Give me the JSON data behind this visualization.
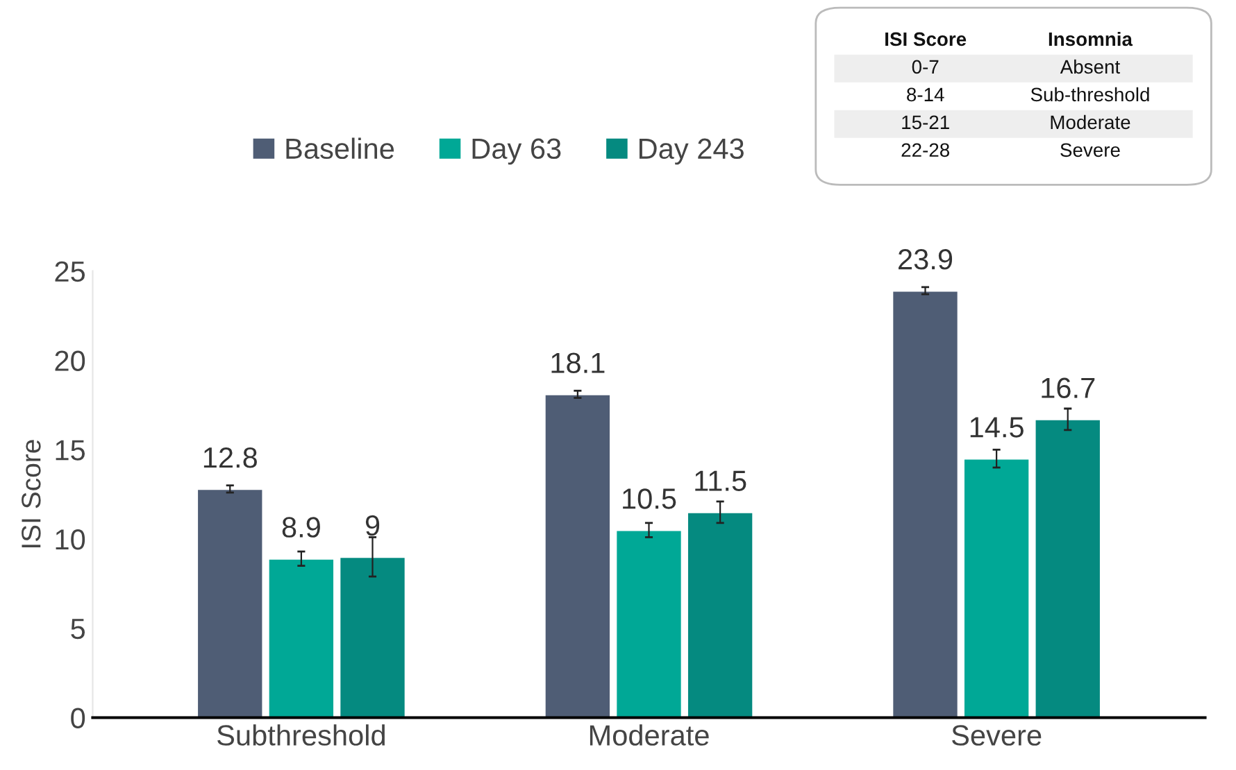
{
  "chart_data": {
    "type": "bar",
    "ylabel": "ISI Score",
    "categories": [
      "Subthreshold",
      "Moderate",
      "Severe"
    ],
    "series": [
      {
        "name": "Baseline",
        "color": "#4f5d75",
        "values": [
          12.8,
          18.1,
          23.9
        ],
        "errors": [
          0.2,
          0.2,
          0.2
        ]
      },
      {
        "name": "Day 63",
        "color": "#00a896",
        "values": [
          8.9,
          10.5,
          14.5
        ],
        "errors": [
          0.4,
          0.4,
          0.5
        ]
      },
      {
        "name": "Day 243",
        "color": "#058a80",
        "values": [
          9,
          11.5,
          16.7
        ],
        "errors": [
          1.1,
          0.6,
          0.6
        ]
      }
    ],
    "ylim": [
      0,
      25
    ],
    "yticks": [
      0,
      5,
      10,
      15,
      20,
      25
    ],
    "grid": false,
    "legend": "top left",
    "data_labels": true,
    "annotations": [
      "ISI Score",
      "Insomnia",
      "0-7",
      "Absent",
      "8-14",
      "Sub-threshold",
      "15-21",
      "Moderate",
      "22-28",
      "Severe"
    ]
  }
}
